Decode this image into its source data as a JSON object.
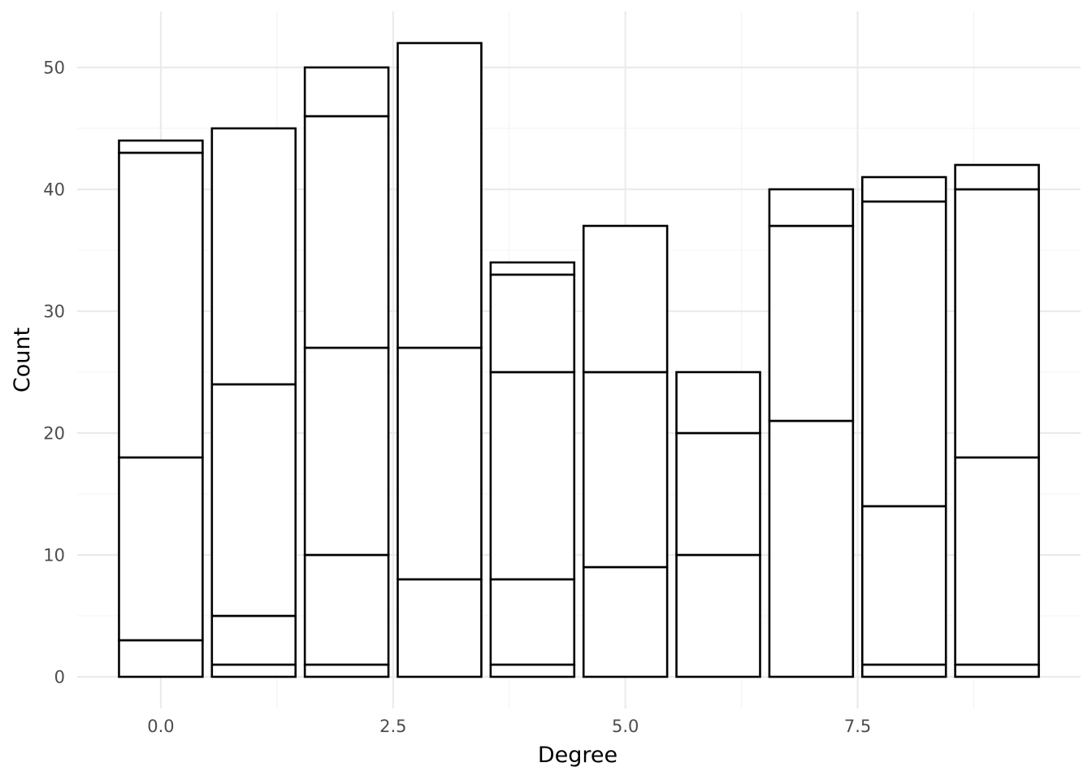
{
  "chart_data": {
    "type": "bar",
    "stacked": true,
    "xlabel": "Degree",
    "ylabel": "Count",
    "xlim": [
      -0.9,
      9.9
    ],
    "ylim": [
      -2.6,
      54.6
    ],
    "x_ticks": [
      0.0,
      2.5,
      5.0,
      7.5
    ],
    "x_tick_labels": [
      "0.0",
      "2.5",
      "5.0",
      "7.5"
    ],
    "y_ticks": [
      0,
      10,
      20,
      30,
      40,
      50
    ],
    "y_tick_labels": [
      "0",
      "10",
      "20",
      "30",
      "40",
      "50"
    ],
    "grid": true,
    "bar_fill": "#ffffff",
    "bar_outline": "#000000",
    "bars": [
      {
        "x": 0,
        "segments": [
          3,
          15,
          25,
          1,
          0
        ]
      },
      {
        "x": 1,
        "segments": [
          1,
          4,
          19,
          21
        ]
      },
      {
        "x": 2,
        "segments": [
          1,
          9,
          17,
          19,
          4
        ]
      },
      {
        "x": 3,
        "segments": [
          8,
          19,
          25
        ]
      },
      {
        "x": 4,
        "segments": [
          1,
          7,
          17,
          8,
          1
        ]
      },
      {
        "x": 5,
        "segments": [
          9,
          16,
          12
        ]
      },
      {
        "x": 6,
        "segments": [
          10,
          10,
          5
        ]
      },
      {
        "x": 7,
        "segments": [
          21,
          16,
          3
        ]
      },
      {
        "x": 8,
        "segments": [
          1,
          13,
          25,
          2
        ]
      },
      {
        "x": 9,
        "segments": [
          1,
          17,
          22,
          2
        ]
      }
    ],
    "totals": [
      44,
      45,
      50,
      52,
      34,
      37,
      25,
      40,
      41,
      42
    ]
  }
}
